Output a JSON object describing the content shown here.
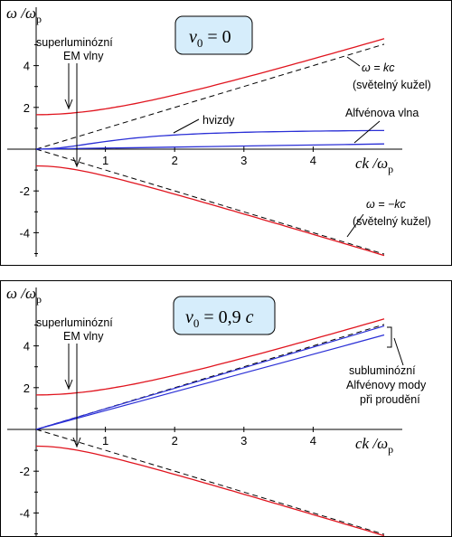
{
  "colors": {
    "em": "#e0141e",
    "alfven": "#2a2fd6",
    "light": "#000000",
    "box": "#d6edfb"
  },
  "chart_data": [
    {
      "type": "line",
      "panel": "top",
      "parameter_box": "v₀ = 0",
      "ylabel": "ω /ωₚ",
      "xlabel": "ck /ωₚ",
      "xlim": [
        0,
        5
      ],
      "ylim": [
        -5.3,
        5.9
      ],
      "xticks": [
        "1",
        "2",
        "3",
        "4"
      ],
      "yticks": [
        "4",
        "2",
        "-2",
        "-4"
      ],
      "curves": {
        "em_upper": {
          "omega_p": 1.65,
          "sign": 1
        },
        "em_lower": {
          "omega_p": 0.8,
          "sign": -1
        },
        "whistler_sat": 0.95,
        "alfven": 0.05
      },
      "annotations": {
        "superluminal": [
          "superluminózní",
          "EM vlny"
        ],
        "light_upper": [
          "ω = kc",
          "(světelný kužel)"
        ],
        "light_lower": [
          "ω = −kc",
          "(světelný kužel)"
        ],
        "whistler": "hvizdy",
        "alfven": "Alfvénova vlna"
      }
    },
    {
      "type": "line",
      "panel": "bottom",
      "parameter_box": "v₀ = 0,9 c",
      "ylabel": "ω /ωₚ",
      "xlabel": "ck /ωₚ",
      "xlim": [
        0,
        5
      ],
      "ylim": [
        -5.3,
        5.9
      ],
      "xticks": [
        "1",
        "2",
        "3",
        "4"
      ],
      "yticks": [
        "4",
        "2",
        "-2",
        "-4"
      ],
      "curves": {
        "em_upper": {
          "omega_p": 1.65,
          "sign": 1
        },
        "em_lower": {
          "omega_p": 0.8,
          "sign": -1
        },
        "alfven_slopes": [
          0.985,
          0.9
        ]
      },
      "annotations": {
        "superluminal": [
          "superluminózní",
          "EM vlny"
        ],
        "subluminal": [
          "subluminózní",
          "Alfvénovy mody",
          "při proudění"
        ]
      }
    }
  ],
  "text": {
    "top_sup_1": "superluminózní",
    "top_sup_2": "EM vlny",
    "top_light_u1": "ω = kc",
    "top_light_u2": "(světelný kužel)",
    "top_light_l1": "ω = −kc",
    "top_light_l2": "(světelný kužel)",
    "top_whistler": "hvizdy",
    "top_alfven": "Alfvénova vlna",
    "bot_sup_1": "superluminózní",
    "bot_sup_2": "EM vlny",
    "bot_sub_1": "subluminózní",
    "bot_sub_2": "Alfvénovy mody",
    "bot_sub_3": "při proudění"
  }
}
